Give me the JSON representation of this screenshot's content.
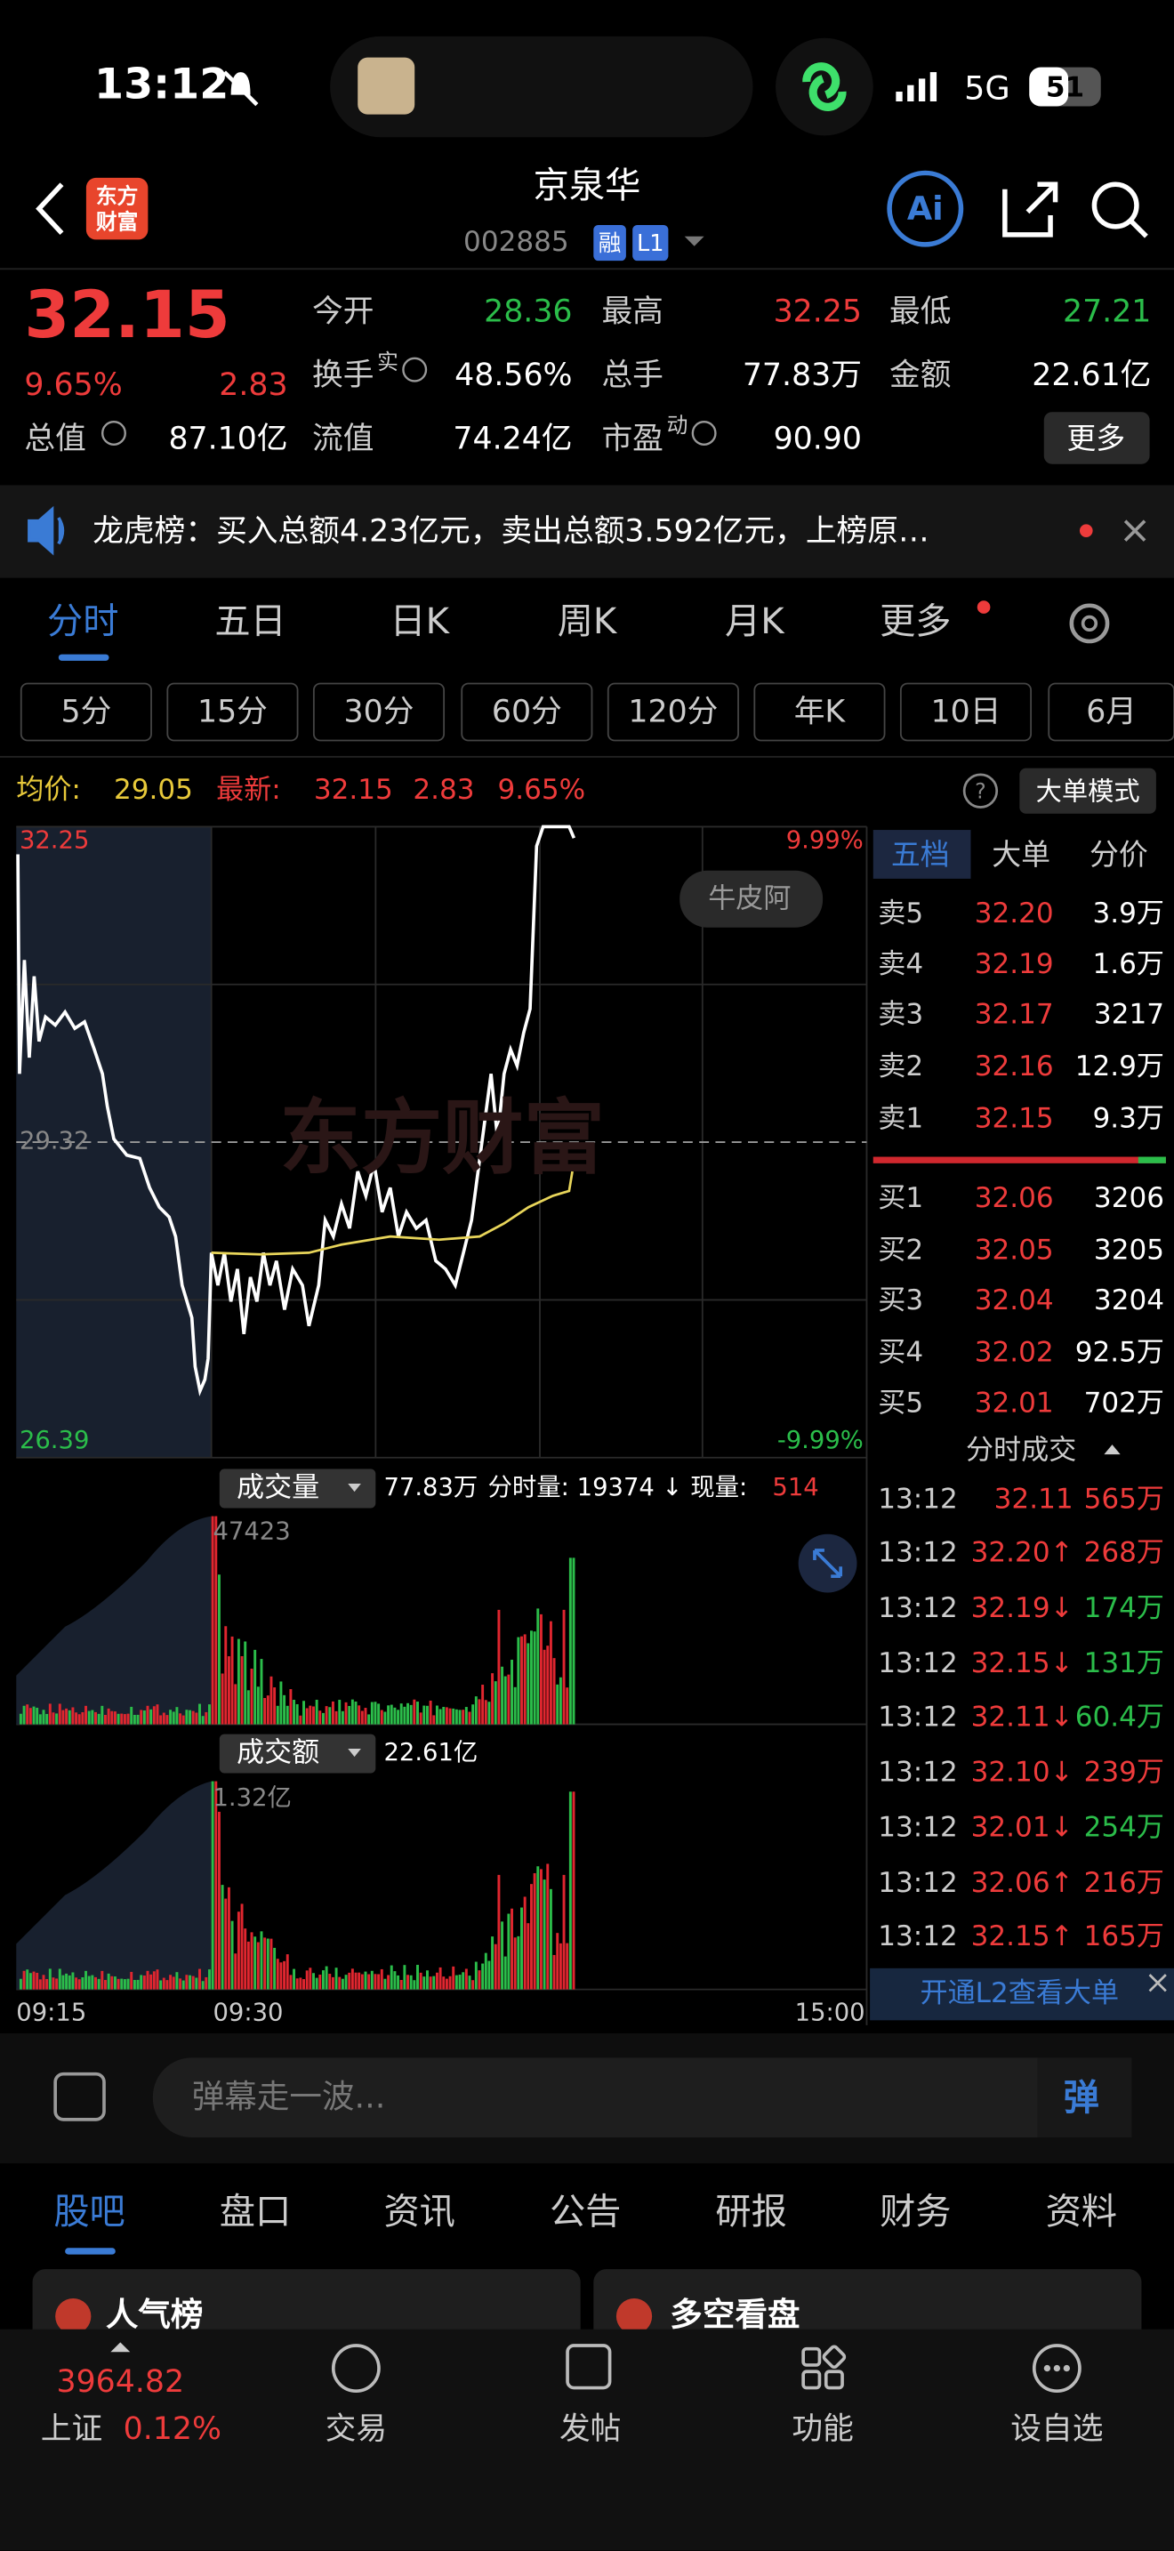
{
  "status": {
    "time": "13:12",
    "network": "5G",
    "battery": "51"
  },
  "header": {
    "logo": [
      "东方",
      "财富"
    ],
    "name": "京泉华",
    "code": "002885",
    "badges": [
      "融",
      "L1"
    ]
  },
  "quote": {
    "price": "32.15",
    "change_pct": "9.65%",
    "change": "2.83"
  },
  "stats": [
    {
      "label": "今开",
      "value": "28.36",
      "color": "#2bbd4a"
    },
    {
      "label": "最高",
      "value": "32.25",
      "color": "#ee3b3b"
    },
    {
      "label": "最低",
      "value": "27.21",
      "color": "#2bbd4a"
    },
    {
      "label": "换手",
      "sup": "实",
      "value": "48.56%",
      "color": "#ffffff"
    },
    {
      "label": "总手",
      "value": "77.83万",
      "color": "#ffffff"
    },
    {
      "label": "金额",
      "value": "22.61亿",
      "color": "#ffffff"
    },
    {
      "label": "总值",
      "value": "87.10亿",
      "color": "#ffffff"
    },
    {
      "label": "流值",
      "value": "74.24亿",
      "color": "#ffffff"
    },
    {
      "label": "市盈",
      "sup": "动",
      "value": "90.90",
      "color": "#ffffff"
    }
  ],
  "more": "更多",
  "notice": "龙虎榜：买入总额4.23亿元，卖出总额3.592亿元，上榜原…",
  "tabs": [
    "分时",
    "五日",
    "日K",
    "周K",
    "月K",
    "更多"
  ],
  "periods": [
    "5分",
    "15分",
    "30分",
    "60分",
    "120分",
    "年K",
    "10日",
    "6月"
  ],
  "info": {
    "avg_label": "均价:",
    "avg": "29.05",
    "last_label": "最新:",
    "last": "32.15",
    "change": "2.83",
    "pct": "9.65%",
    "mode": "大单模式"
  },
  "chart": {
    "high": "32.25",
    "mid": "29.32",
    "low": "26.39",
    "high_pct": "9.99%",
    "low_pct": "-9.99%",
    "tag": "牛皮阿",
    "watermark": "东方财富"
  },
  "order_book": {
    "tabs": [
      "五档",
      "大单",
      "分价"
    ],
    "asks": [
      [
        "卖5",
        "32.20",
        "3.9万"
      ],
      [
        "卖4",
        "32.19",
        "1.6万"
      ],
      [
        "卖3",
        "32.17",
        "3217"
      ],
      [
        "卖2",
        "32.16",
        "12.9万"
      ],
      [
        "卖1",
        "32.15",
        "9.3万"
      ]
    ],
    "bids": [
      [
        "买1",
        "32.06",
        "3206"
      ],
      [
        "买2",
        "32.05",
        "3205"
      ],
      [
        "买3",
        "32.04",
        "3204"
      ],
      [
        "买4",
        "32.02",
        "92.5万"
      ],
      [
        "买5",
        "32.01",
        "702万"
      ]
    ]
  },
  "trades": {
    "title": "分时成交",
    "rows": [
      {
        "time": "13:12",
        "price": "32.11",
        "volume": "565万",
        "color": "#ee3b3b"
      },
      {
        "time": "13:12",
        "price": "32.20↑",
        "volume": "268万",
        "color": "#ee3b3b"
      },
      {
        "time": "13:12",
        "price": "32.19↓",
        "volume": "174万",
        "color": "#2bbd4a"
      },
      {
        "time": "13:12",
        "price": "32.15↓",
        "volume": "131万",
        "color": "#2bbd4a"
      },
      {
        "time": "13:12",
        "price": "32.11↓",
        "volume": "60.4万",
        "color": "#2bbd4a"
      },
      {
        "time": "13:12",
        "price": "32.10↓",
        "volume": "239万",
        "color": "#ee3b3b"
      },
      {
        "time": "13:12",
        "price": "32.01↓",
        "volume": "254万",
        "color": "#2bbd4a"
      },
      {
        "time": "13:12",
        "price": "32.06↑",
        "volume": "216万",
        "color": "#ee3b3b"
      },
      {
        "time": "13:12",
        "price": "32.15↑",
        "volume": "165万",
        "color": "#ee3b3b"
      }
    ],
    "banner": "开通L2查看大单"
  },
  "volume": {
    "label": "成交量",
    "total": "77.83万",
    "detail": "分时量: 19374 ↓ 现量:",
    "current": "514",
    "max": "47423"
  },
  "amount": {
    "label": "成交额",
    "total": "22.61亿",
    "max": "1.32亿"
  },
  "time_axis": [
    "09:15",
    "09:30",
    "15:00"
  ],
  "comment": {
    "placeholder": "弹幕走一波...",
    "button": "弹"
  },
  "bottom_tabs": [
    "股吧",
    "盘口",
    "资讯",
    "公告",
    "研报",
    "财务",
    "资料"
  ],
  "cards": [
    "人气榜",
    "多空看盘"
  ],
  "nav": {
    "index_value": "3964.82",
    "index_name": "上证",
    "index_pct": "0.12%",
    "items": [
      "交易",
      "发帖",
      "功能",
      "设自选"
    ]
  }
}
